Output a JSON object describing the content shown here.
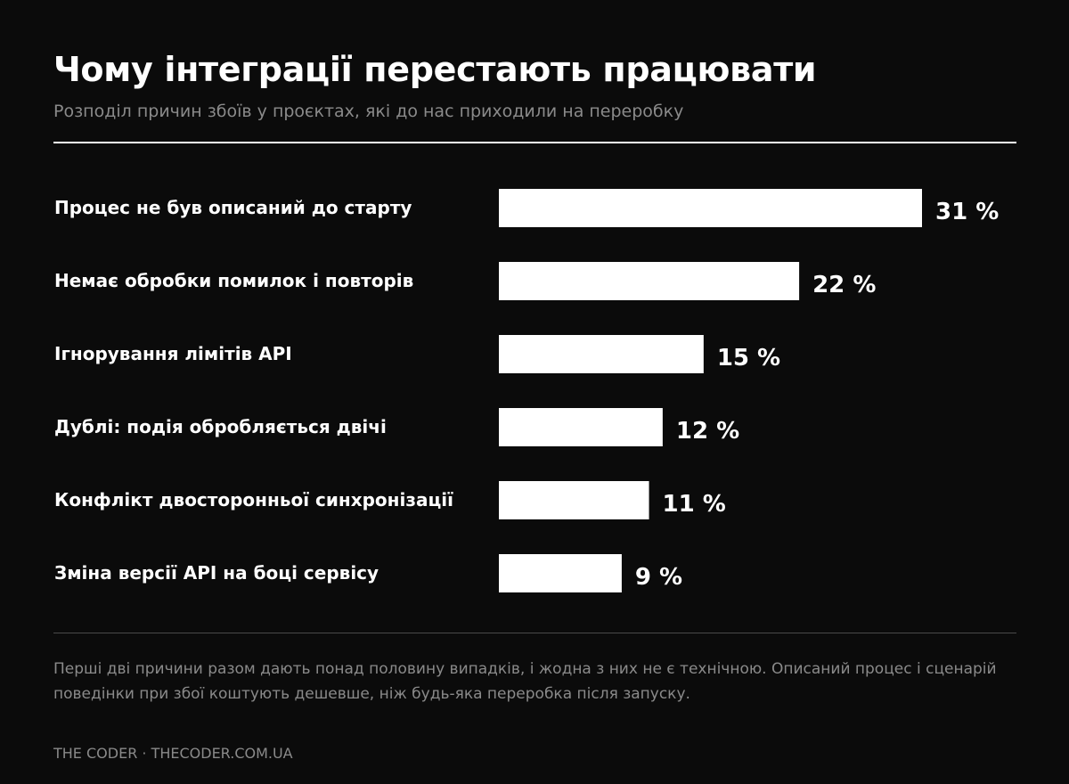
{
  "header": {
    "title": "Чому інтеграції перестають працювати",
    "subtitle": "Розподіл причин збоїв у проєктах, які до нас приходили на переробку"
  },
  "chart_data": {
    "type": "bar",
    "orientation": "horizontal",
    "categories": [
      "Процес не був описаний до старту",
      "Немає обробки помилок і повторів",
      "Ігнорування лімітів API",
      "Дублі: подія обробляється двічі",
      "Конфлікт двосторонньої синхронізації",
      "Зміна версії API на боці сервісу"
    ],
    "values": [
      31,
      22,
      15,
      12,
      11,
      9
    ],
    "value_labels": [
      "31 %",
      "22 %",
      "15 %",
      "12 %",
      "11 %",
      "9 %"
    ],
    "unit": "%",
    "title": "Чому інтеграції перестають працювати",
    "subtitle": "Розподіл причин збоїв у проєктах, які до нас приходили на переробку",
    "xlabel": "",
    "ylabel": "",
    "grid": false,
    "legend": "none",
    "bar_color": "#ffffff",
    "background": "#0b0b0b"
  },
  "note": "Перші дві причини разом дають понад половину випадків, і жодна з них не є технічною. Описаний процес і сценарій поведінки при збої коштують дешевше, ніж будь-яка переробка після запуску.",
  "footer": "THE CODER · THECODER.COM.UA"
}
